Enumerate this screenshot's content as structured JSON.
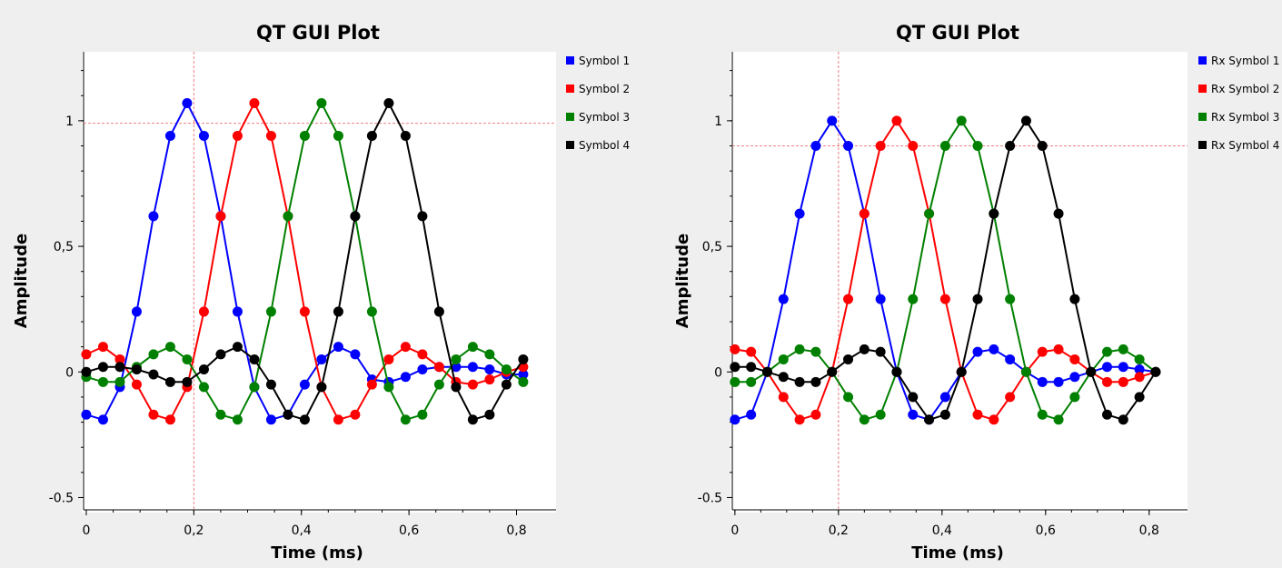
{
  "chart_data": [
    {
      "type": "line",
      "title": "QT GUI Plot",
      "xlabel": "Time (ms)",
      "ylabel": "Amplitude",
      "xlim": [
        -0.005,
        0.86
      ],
      "ylim": [
        -0.52,
        1.26
      ],
      "x_ticks": [
        0,
        0.2,
        0.4,
        0.6,
        0.8
      ],
      "x_tick_labels": [
        "0",
        "0,2",
        "0,4",
        "0,6",
        "0,8"
      ],
      "y_ticks": [
        -0.5,
        0,
        0.5,
        1
      ],
      "y_tick_labels": [
        "-0.5",
        "0",
        "0,5",
        "1"
      ],
      "grid": false,
      "legend_position": "right",
      "marker": {
        "x": 0.2,
        "y": 0.99
      },
      "x": [
        0,
        0.03125,
        0.0625,
        0.09375,
        0.125,
        0.15625,
        0.1875,
        0.21875,
        0.25,
        0.28125,
        0.3125,
        0.34375,
        0.375,
        0.40625,
        0.4375,
        0.46875,
        0.5,
        0.53125,
        0.5625,
        0.59375,
        0.625,
        0.65625,
        0.6875,
        0.71875,
        0.75,
        0.78125,
        0.8125
      ],
      "series": [
        {
          "name": "Symbol 1",
          "color": "#0000ff",
          "values": [
            -0.17,
            -0.19,
            -0.06,
            0.24,
            0.62,
            0.94,
            1.07,
            0.94,
            0.62,
            0.24,
            -0.06,
            -0.19,
            -0.17,
            -0.05,
            0.05,
            0.1,
            0.07,
            -0.03,
            -0.04,
            -0.02,
            0.01,
            0.02,
            0.02,
            0.02,
            0.01,
            -0.01,
            -0.01
          ]
        },
        {
          "name": "Symbol 2",
          "color": "#ff0000",
          "values": [
            0.07,
            0.1,
            0.05,
            -0.05,
            -0.17,
            -0.19,
            -0.06,
            0.24,
            0.62,
            0.94,
            1.07,
            0.94,
            0.62,
            0.24,
            -0.06,
            -0.19,
            -0.17,
            -0.05,
            0.05,
            0.1,
            0.07,
            0.02,
            -0.04,
            -0.05,
            -0.03,
            0.0,
            0.02
          ]
        },
        {
          "name": "Symbol 3",
          "color": "#008000",
          "values": [
            -0.02,
            -0.04,
            -0.04,
            0.02,
            0.07,
            0.1,
            0.05,
            -0.06,
            -0.17,
            -0.19,
            -0.06,
            0.24,
            0.62,
            0.94,
            1.07,
            0.94,
            0.62,
            0.24,
            -0.06,
            -0.19,
            -0.17,
            -0.05,
            0.05,
            0.1,
            0.07,
            0.01,
            -0.04
          ]
        },
        {
          "name": "Symbol 4",
          "color": "#000000",
          "values": [
            0.0,
            0.02,
            0.02,
            0.01,
            -0.01,
            -0.04,
            -0.04,
            0.01,
            0.07,
            0.1,
            0.05,
            -0.05,
            -0.17,
            -0.19,
            -0.06,
            0.24,
            0.62,
            0.94,
            1.07,
            0.94,
            0.62,
            0.24,
            -0.06,
            -0.19,
            -0.17,
            -0.05,
            0.05
          ]
        }
      ]
    },
    {
      "type": "line",
      "title": "QT GUI Plot",
      "xlabel": "Time (ms)",
      "ylabel": "Amplitude",
      "xlim": [
        -0.005,
        0.86
      ],
      "ylim": [
        -0.52,
        1.26
      ],
      "x_ticks": [
        0,
        0.2,
        0.4,
        0.6,
        0.8
      ],
      "x_tick_labels": [
        "0",
        "0,2",
        "0,4",
        "0,6",
        "0,8"
      ],
      "y_ticks": [
        -0.5,
        0,
        0.5,
        1
      ],
      "y_tick_labels": [
        "-0.5",
        "0",
        "0,5",
        "1"
      ],
      "grid": false,
      "legend_position": "right",
      "marker": {
        "x": 0.2,
        "y": 0.9
      },
      "x": [
        0,
        0.03125,
        0.0625,
        0.09375,
        0.125,
        0.15625,
        0.1875,
        0.21875,
        0.25,
        0.28125,
        0.3125,
        0.34375,
        0.375,
        0.40625,
        0.4375,
        0.46875,
        0.5,
        0.53125,
        0.5625,
        0.59375,
        0.625,
        0.65625,
        0.6875,
        0.71875,
        0.75,
        0.78125,
        0.8125
      ],
      "series": [
        {
          "name": "Rx Symbol 1",
          "color": "#0000ff",
          "values": [
            -0.19,
            -0.17,
            0.0,
            0.29,
            0.63,
            0.9,
            1.0,
            0.9,
            0.63,
            0.29,
            0.0,
            -0.17,
            -0.19,
            -0.1,
            0.0,
            0.08,
            0.09,
            0.05,
            0.0,
            -0.04,
            -0.04,
            -0.02,
            0.0,
            0.02,
            0.02,
            0.01,
            0.0
          ]
        },
        {
          "name": "Rx Symbol 2",
          "color": "#ff0000",
          "values": [
            0.09,
            0.08,
            0.0,
            -0.1,
            -0.19,
            -0.17,
            0.0,
            0.29,
            0.63,
            0.9,
            1.0,
            0.9,
            0.63,
            0.29,
            0.0,
            -0.17,
            -0.19,
            -0.1,
            0.0,
            0.08,
            0.09,
            0.05,
            0.0,
            -0.04,
            -0.04,
            -0.02,
            0.0
          ]
        },
        {
          "name": "Rx Symbol 3",
          "color": "#008000",
          "values": [
            -0.04,
            -0.04,
            0.0,
            0.05,
            0.09,
            0.08,
            0.0,
            -0.1,
            -0.19,
            -0.17,
            0.0,
            0.29,
            0.63,
            0.9,
            1.0,
            0.9,
            0.63,
            0.29,
            0.0,
            -0.17,
            -0.19,
            -0.1,
            0.0,
            0.08,
            0.09,
            0.05,
            0.0
          ]
        },
        {
          "name": "Rx Symbol 4",
          "color": "#000000",
          "values": [
            0.02,
            0.02,
            0.0,
            -0.02,
            -0.04,
            -0.04,
            0.0,
            0.05,
            0.09,
            0.08,
            0.0,
            -0.1,
            -0.19,
            -0.17,
            0.0,
            0.29,
            0.63,
            0.9,
            1.0,
            0.9,
            0.63,
            0.29,
            0.0,
            -0.17,
            -0.19,
            -0.1,
            0.0
          ]
        }
      ]
    }
  ]
}
